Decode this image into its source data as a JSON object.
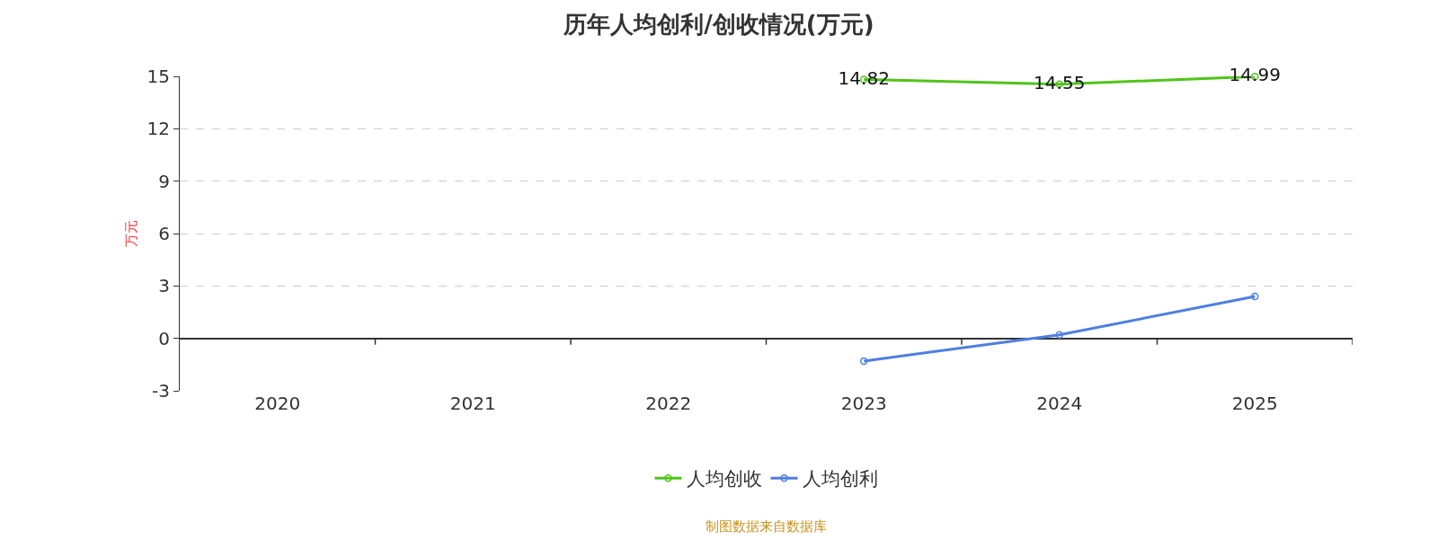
{
  "chart_data": {
    "type": "line",
    "title": "历年人均创利/创收情况(万元)",
    "ylabel": "万元",
    "categories": [
      "2020",
      "2021",
      "2022",
      "2023",
      "2024",
      "2025"
    ],
    "series": [
      {
        "name": "人均创收",
        "color": "#52c41a",
        "values": [
          null,
          null,
          null,
          14.82,
          14.55,
          14.99
        ],
        "value_labels": [
          null,
          null,
          null,
          "14.82",
          "14.55",
          "14.99"
        ]
      },
      {
        "name": "人均创利",
        "color": "#4e7fe0",
        "values": [
          null,
          null,
          null,
          -1.3,
          0.2,
          2.4
        ]
      }
    ],
    "ylim": [
      -3,
      15
    ],
    "yticks": [
      -3,
      0,
      3,
      6,
      9,
      12,
      15
    ],
    "grid": "y",
    "legend": "bottom",
    "marker": "circle",
    "line_style": "solid",
    "annotations": [
      "制图数据来自数据库"
    ]
  }
}
